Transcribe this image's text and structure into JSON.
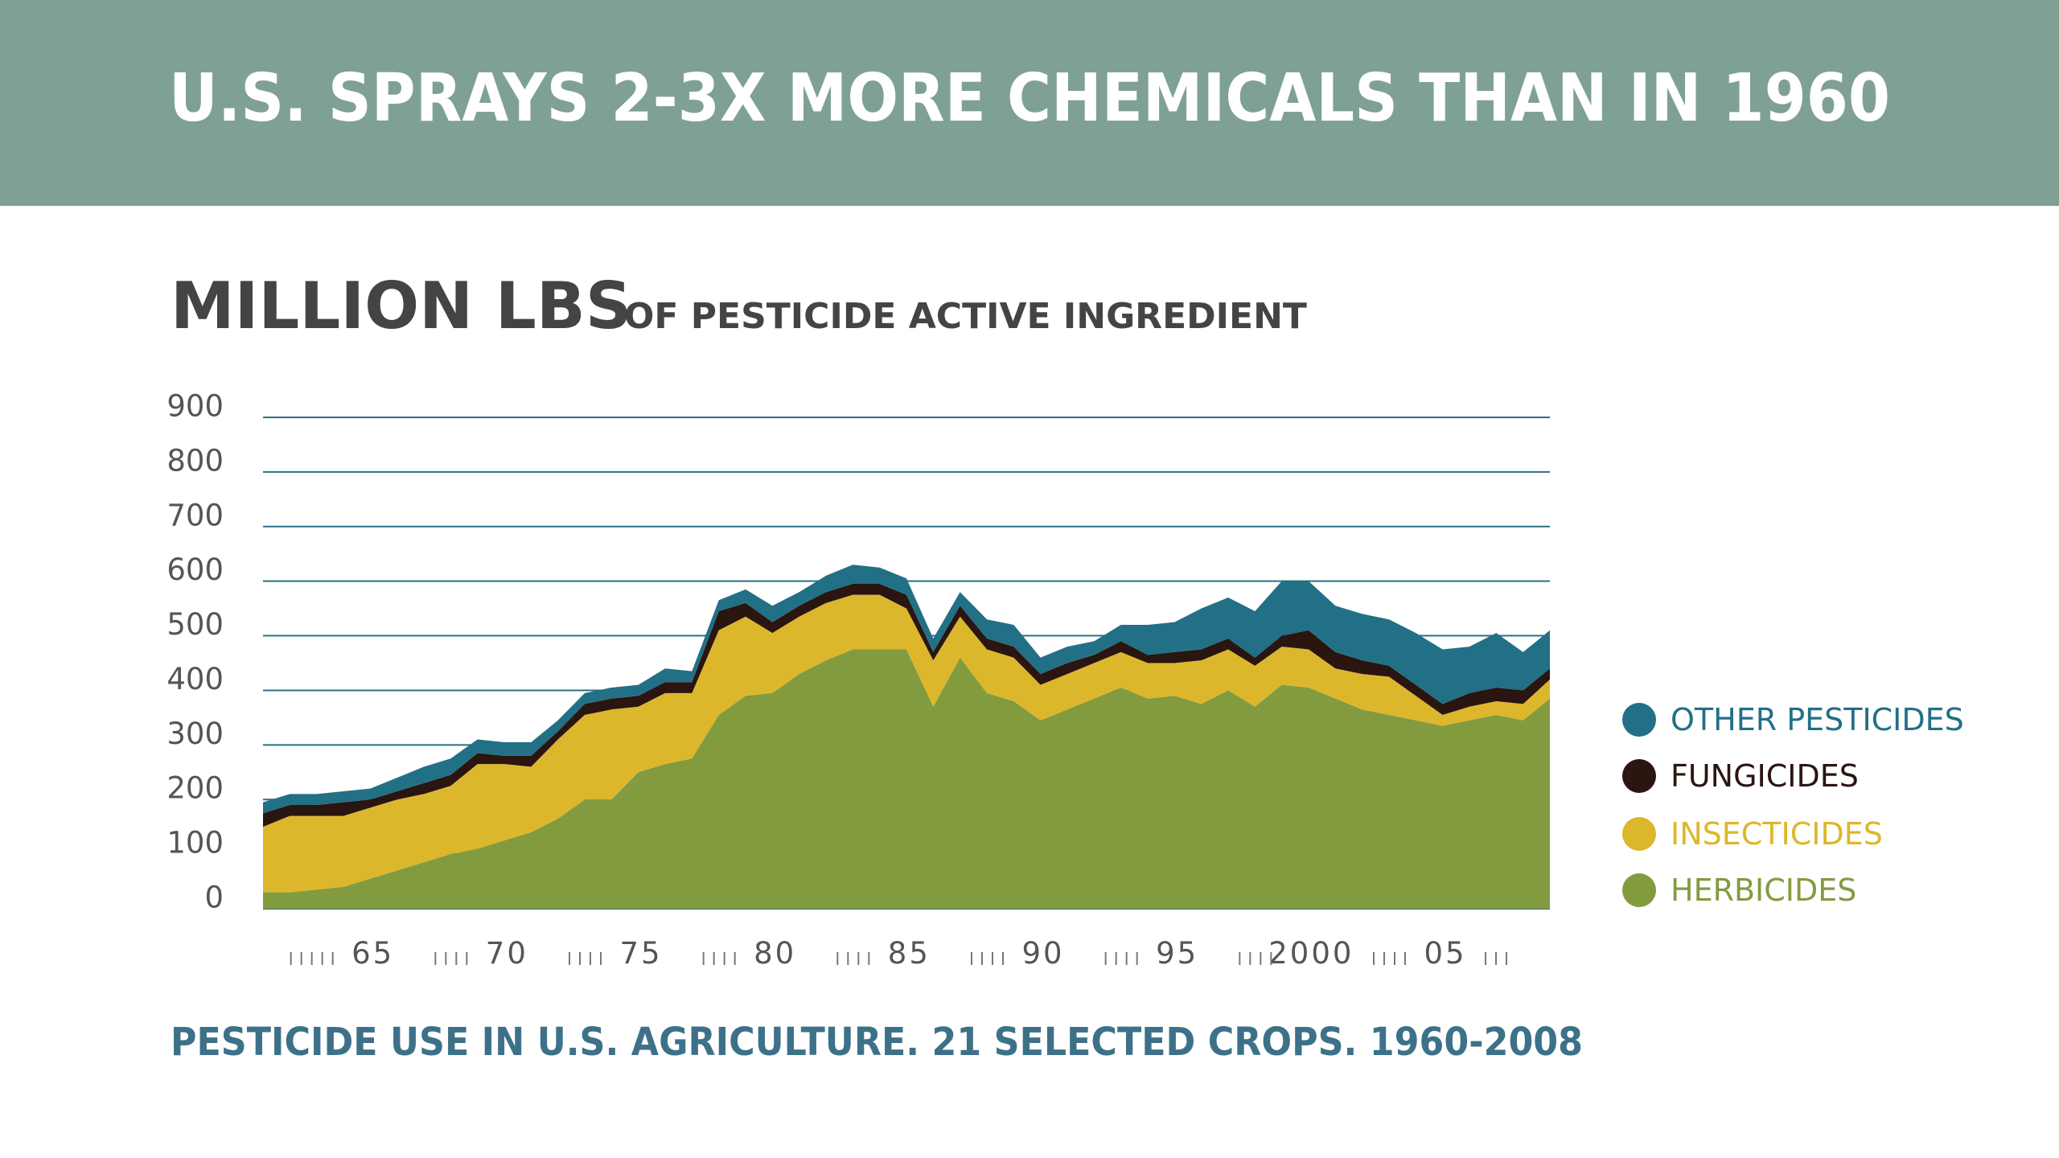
{
  "chart_data": {
    "type": "stacked_area",
    "title": "U.S. SPRAYS 2-3X MORE CHEMICALS THAN IN 1960",
    "subtitle": "MILLION LBS",
    "subtitle_note": "OF PESTICIDE  ACTIVE INGREDIENT",
    "caption": "PESTICIDE USE IN U.S. AGRICULTURE. 21 SELECTED CROPS. 1960-2008",
    "x": [
      1960,
      1961,
      1962,
      1963,
      1964,
      1965,
      1966,
      1967,
      1968,
      1969,
      1970,
      1971,
      1972,
      1973,
      1974,
      1975,
      1976,
      1977,
      1978,
      1979,
      1980,
      1981,
      1982,
      1983,
      1984,
      1985,
      1986,
      1987,
      1988,
      1989,
      1990,
      1991,
      1992,
      1993,
      1994,
      1995,
      1996,
      1997,
      1998,
      1999,
      2000,
      2001,
      2002,
      2003,
      2004,
      2005,
      2006,
      2007,
      2008
    ],
    "series": [
      {
        "name": "HERBICIDES",
        "color": "#829b3f",
        "values": [
          30,
          30,
          35,
          40,
          55,
          70,
          85,
          100,
          110,
          125,
          140,
          165,
          200,
          200,
          250,
          265,
          275,
          355,
          390,
          395,
          430,
          455,
          475,
          475,
          475,
          370,
          460,
          395,
          380,
          345,
          365,
          385,
          405,
          385,
          390,
          375,
          400,
          370,
          410,
          405,
          385,
          365,
          355,
          345,
          335,
          345,
          355,
          345,
          385
        ]
      },
      {
        "name": "INSECTICIDES",
        "color": "#dcb72c",
        "values": [
          120,
          140,
          135,
          130,
          130,
          130,
          125,
          125,
          155,
          140,
          120,
          145,
          155,
          165,
          120,
          130,
          120,
          155,
          145,
          110,
          105,
          105,
          100,
          100,
          75,
          85,
          75,
          80,
          80,
          65,
          65,
          65,
          65,
          65,
          60,
          80,
          75,
          75,
          70,
          70,
          55,
          65,
          70,
          45,
          20,
          25,
          25,
          30,
          35
        ]
      },
      {
        "name": "FUNGICIDES",
        "color": "#2a1510",
        "values": [
          25,
          20,
          20,
          25,
          15,
          15,
          20,
          20,
          20,
          15,
          20,
          15,
          20,
          20,
          20,
          20,
          20,
          35,
          25,
          20,
          20,
          20,
          20,
          20,
          25,
          15,
          20,
          20,
          20,
          20,
          20,
          15,
          20,
          15,
          20,
          20,
          20,
          15,
          20,
          35,
          30,
          25,
          20,
          20,
          20,
          25,
          25,
          25,
          20
        ]
      },
      {
        "name": "OTHER PESTICIDES",
        "color": "#227086",
        "values": [
          20,
          20,
          20,
          20,
          20,
          25,
          30,
          30,
          25,
          25,
          25,
          20,
          20,
          20,
          20,
          25,
          20,
          20,
          25,
          30,
          25,
          30,
          35,
          30,
          30,
          25,
          25,
          35,
          40,
          30,
          30,
          25,
          30,
          55,
          55,
          75,
          75,
          85,
          100,
          90,
          85,
          85,
          85,
          95,
          100,
          85,
          100,
          70,
          70
        ]
      }
    ],
    "xlim": [
      1960,
      2008
    ],
    "xticks": [
      {
        "value": 1965,
        "label": "65"
      },
      {
        "value": 1970,
        "label": "70"
      },
      {
        "value": 1975,
        "label": "75"
      },
      {
        "value": 1980,
        "label": "80"
      },
      {
        "value": 1985,
        "label": "85"
      },
      {
        "value": 1990,
        "label": "90"
      },
      {
        "value": 1995,
        "label": "95"
      },
      2000,
      {
        "value": 2005,
        "label": "05"
      }
    ],
    "ylim": [
      0,
      900
    ],
    "yticks": [
      0,
      100,
      200,
      300,
      400,
      500,
      600,
      700,
      800,
      900
    ],
    "grid": true,
    "grid_color": "#2a6f84",
    "legend": "right"
  }
}
